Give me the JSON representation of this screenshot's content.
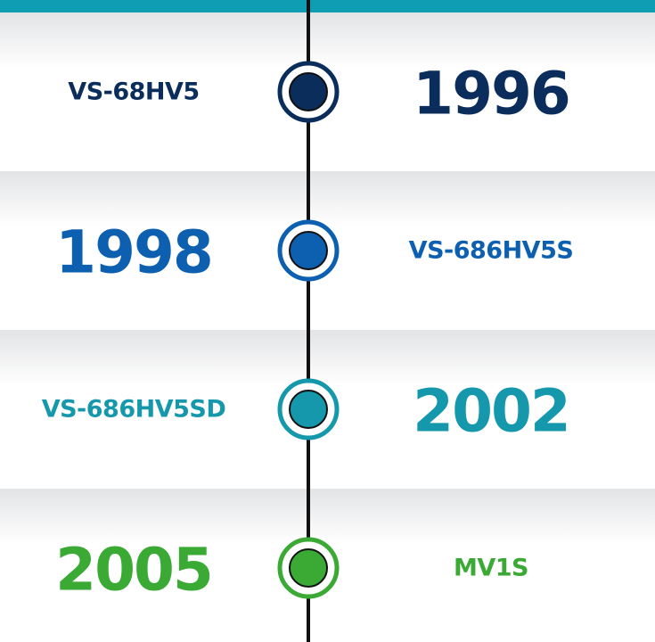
{
  "timeline": {
    "items": [
      {
        "year": "1996",
        "model": "VS-68HV5",
        "color": "#0b2d5b"
      },
      {
        "year": "1998",
        "model": "VS-686HV5S",
        "color": "#0d5fb0"
      },
      {
        "year": "2002",
        "model": "VS-686HV5SD",
        "color": "#1598ab"
      },
      {
        "year": "2005",
        "model": "MV1S",
        "color": "#3aaa35"
      }
    ]
  }
}
